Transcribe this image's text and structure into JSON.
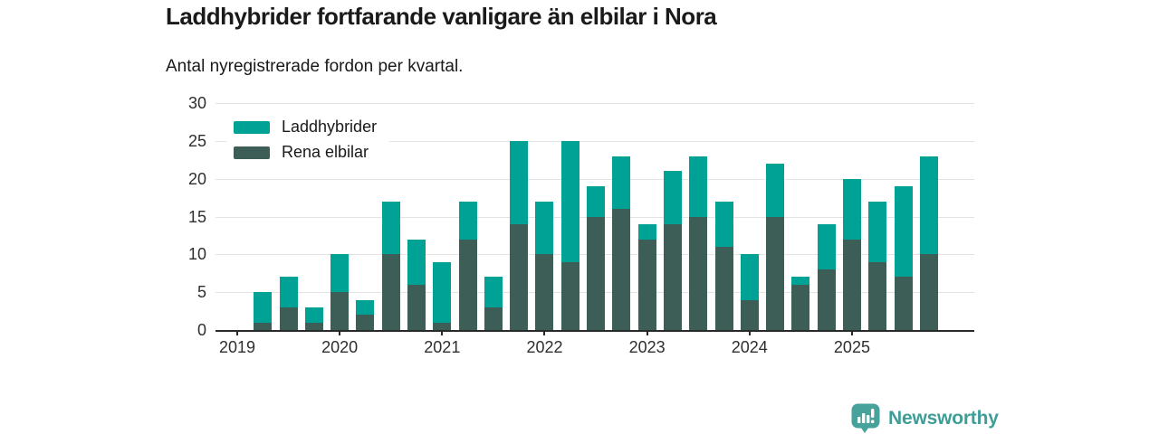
{
  "header": {
    "title": "Laddhybrider fortfarande vanligare än elbilar i Nora",
    "subtitle": "Antal nyregistrerade fordon per kvartal."
  },
  "legend": [
    {
      "label": "Laddhybrider",
      "color": "#00a296"
    },
    {
      "label": "Rena elbilar",
      "color": "#3c5e56"
    }
  ],
  "colors": {
    "laddhybrider": "#00a296",
    "rena_elbilar": "#3c5e56",
    "grid": "#e3e3e3",
    "axis": "#2a2a2a",
    "logo": "#47a29b"
  },
  "footer": {
    "brand": "Newsworthy"
  },
  "chart_data": {
    "type": "bar",
    "stacked": true,
    "title": "Laddhybrider fortfarande vanligare än elbilar i Nora",
    "subtitle": "Antal nyregistrerade fordon per kvartal.",
    "xlabel": "",
    "ylabel": "",
    "ylim": [
      0,
      30
    ],
    "yticks": [
      0,
      5,
      10,
      15,
      20,
      25,
      30
    ],
    "grid": true,
    "legend_position": "top-left",
    "x_tick_labels": [
      "2019",
      "2020",
      "2021",
      "2022",
      "2023",
      "2024",
      "2025"
    ],
    "categories": [
      "2019 Q1",
      "2019 Q2",
      "2019 Q3",
      "2019 Q4",
      "2020 Q1",
      "2020 Q2",
      "2020 Q3",
      "2020 Q4",
      "2021 Q1",
      "2021 Q2",
      "2021 Q3",
      "2021 Q4",
      "2022 Q1",
      "2022 Q2",
      "2022 Q3",
      "2022 Q4",
      "2023 Q1",
      "2023 Q2",
      "2023 Q3",
      "2023 Q4",
      "2024 Q1",
      "2024 Q2",
      "2024 Q3",
      "2024 Q4",
      "2025 Q1",
      "2025 Q2",
      "2025 Q3",
      "2025 Q4"
    ],
    "series": [
      {
        "name": "Laddhybrider",
        "stack_position": "top",
        "color": "#00a296",
        "values": [
          0,
          4,
          4,
          2,
          5,
          2,
          7,
          6,
          8,
          5,
          4,
          11,
          7,
          16,
          4,
          7,
          2,
          7,
          8,
          6,
          6,
          7,
          1,
          6,
          8,
          8,
          12,
          13
        ]
      },
      {
        "name": "Rena elbilar",
        "stack_position": "bottom",
        "color": "#3c5e56",
        "values": [
          0,
          1,
          3,
          1,
          5,
          2,
          10,
          6,
          1,
          12,
          3,
          14,
          10,
          9,
          15,
          16,
          12,
          14,
          15,
          11,
          4,
          15,
          6,
          8,
          12,
          9,
          7,
          10
        ]
      }
    ],
    "stacked_totals": [
      0,
      5,
      7,
      3,
      10,
      4,
      17,
      12,
      9,
      17,
      7,
      25,
      17,
      25,
      19,
      23,
      14,
      21,
      23,
      17,
      10,
      22,
      7,
      14,
      20,
      17,
      19,
      23
    ]
  }
}
